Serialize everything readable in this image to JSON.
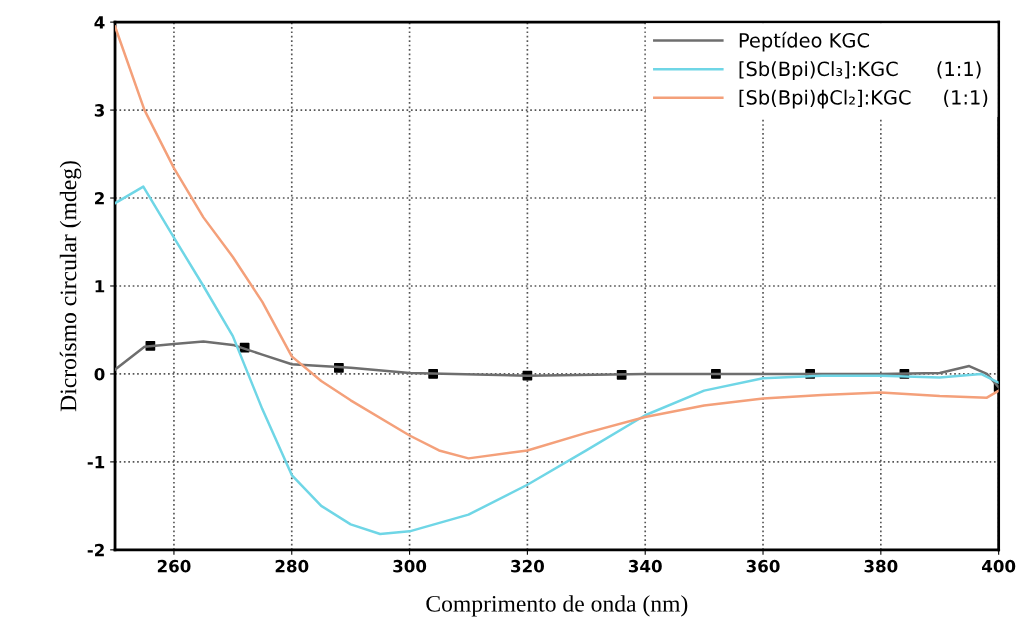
{
  "chart_data": {
    "type": "line",
    "xlabel": "Comprimento de onda (nm)",
    "ylabel": "Dicroísmo circular (mdeg)",
    "xlim": [
      250,
      400
    ],
    "ylim": [
      -2,
      4
    ],
    "xticks": [
      260,
      280,
      300,
      320,
      340,
      360,
      380,
      400
    ],
    "yticks": [
      -2,
      -1,
      0,
      1,
      2,
      3,
      4
    ],
    "grid": true,
    "legend": "top right",
    "series": [
      {
        "name": "Peptídeo KGC",
        "color": "#6e6e6e",
        "x": [
          250,
          255,
          260,
          265,
          270,
          275,
          280,
          290,
          300,
          320,
          340,
          360,
          380,
          390,
          395,
          398,
          400
        ],
        "values": [
          0.05,
          0.31,
          0.34,
          0.37,
          0.33,
          0.22,
          0.11,
          0.07,
          0.01,
          -0.02,
          0,
          0,
          0,
          0.01,
          0.09,
          0.0,
          -0.15
        ]
      },
      {
        "type": "scatter",
        "color": "#000000",
        "marker": "square",
        "x": [
          256,
          272,
          288,
          304,
          320,
          336,
          352,
          368,
          384,
          400
        ],
        "values": [
          0.32,
          0.3,
          0.07,
          0.0,
          -0.02,
          -0.01,
          0.0,
          0.0,
          0.0,
          -0.15
        ]
      },
      {
        "name": "[Sb(Bpi)Cl₃]:KGC      (1:1)",
        "color": "#6fd6e6",
        "x": [
          250,
          254.8,
          260,
          265,
          270,
          275,
          280,
          285,
          290,
          295,
          300,
          310,
          320,
          330,
          340,
          350,
          360,
          370,
          380,
          390,
          397,
          400
        ],
        "values": [
          1.94,
          2.13,
          1.55,
          1.0,
          0.43,
          -0.4,
          -1.15,
          -1.5,
          -1.71,
          -1.82,
          -1.79,
          -1.6,
          -1.26,
          -0.87,
          -0.47,
          -0.19,
          -0.05,
          -0.02,
          -0.02,
          -0.04,
          0.0,
          -0.1
        ]
      },
      {
        "name": "[Sb(Bpi)ϕCl₂]:KGC     (1:1)",
        "color": "#f4a07a",
        "x": [
          250,
          255,
          260,
          265,
          270,
          275,
          280,
          285,
          290,
          300,
          305,
          310,
          320,
          330,
          340,
          350,
          360,
          370,
          380,
          390,
          398,
          400
        ],
        "values": [
          3.95,
          3.0,
          2.34,
          1.78,
          1.33,
          0.82,
          0.2,
          -0.08,
          -0.3,
          -0.7,
          -0.87,
          -0.96,
          -0.87,
          -0.67,
          -0.49,
          -0.36,
          -0.28,
          -0.24,
          -0.21,
          -0.25,
          -0.27,
          -0.19
        ]
      }
    ]
  }
}
